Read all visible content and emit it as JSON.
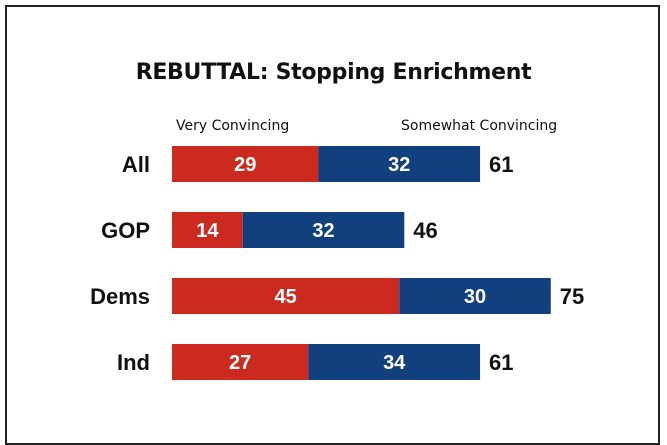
{
  "chart_data": {
    "type": "bar",
    "orientation": "horizontal",
    "stacked": true,
    "title": "REBUTTAL: Stopping Enrichment",
    "categories": [
      "All",
      "GOP",
      "Dems",
      "Ind"
    ],
    "series": [
      {
        "name": "Very Convincing",
        "values": [
          29,
          14,
          45,
          27
        ],
        "color": "#cc2a1e"
      },
      {
        "name": "Somewhat Convincing",
        "values": [
          32,
          32,
          30,
          34
        ],
        "color": "#123f7d"
      }
    ],
    "totals": [
      61,
      46,
      75,
      61
    ],
    "legend_placement": "top",
    "grid": false
  }
}
